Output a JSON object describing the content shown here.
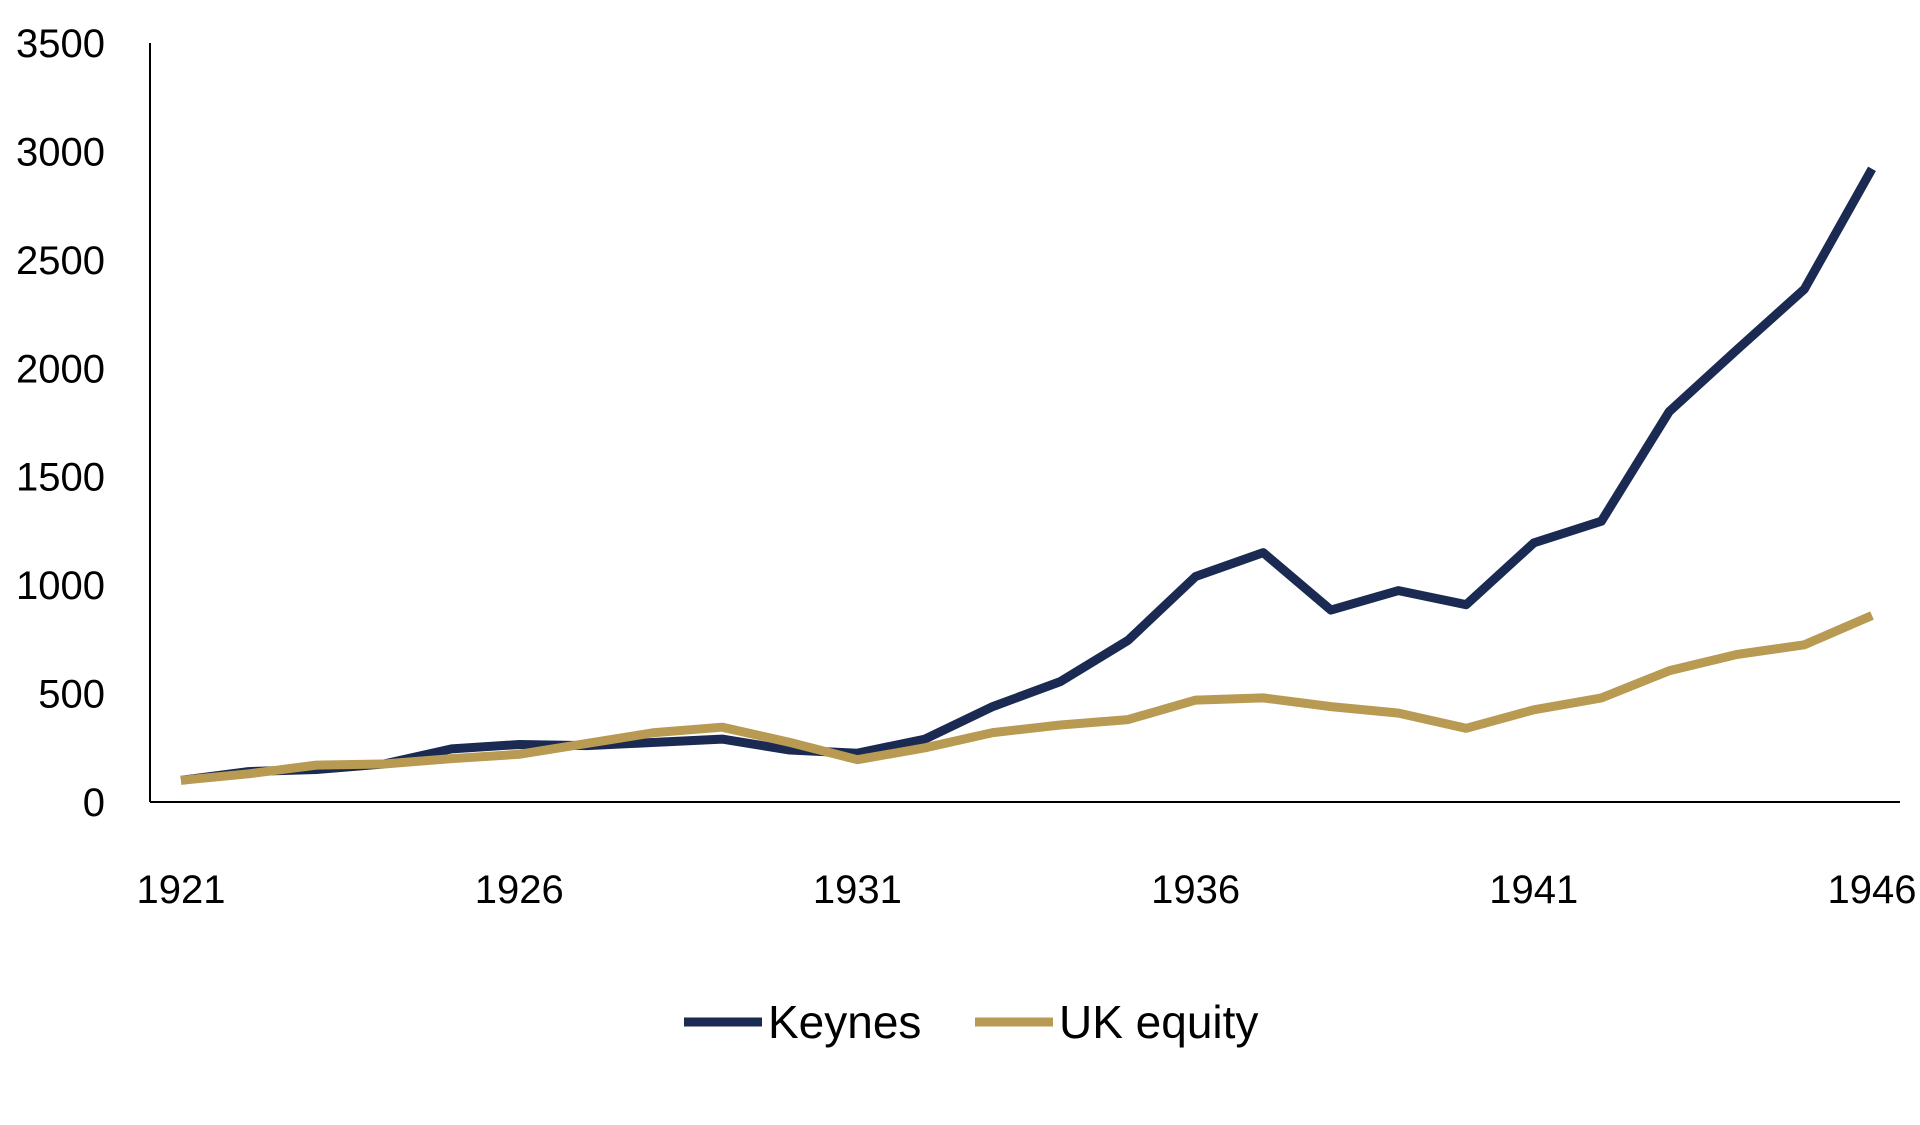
{
  "chart_data": {
    "type": "line",
    "title": "",
    "xlabel": "",
    "ylabel": "",
    "x": [
      1921,
      1922,
      1923,
      1924,
      1925,
      1926,
      1927,
      1928,
      1929,
      1930,
      1931,
      1932,
      1933,
      1934,
      1935,
      1936,
      1937,
      1938,
      1939,
      1940,
      1941,
      1942,
      1943,
      1944,
      1945,
      1946
    ],
    "x_ticks": [
      "1921",
      "1926",
      "1931",
      "1936",
      "1941",
      "1946"
    ],
    "y_ticks": [
      "0",
      "500",
      "1000",
      "1500",
      "2000",
      "2500",
      "3000",
      "3500"
    ],
    "ylim": [
      0,
      3500
    ],
    "grid": false,
    "legend_position": "bottom",
    "series": [
      {
        "name": "Keynes",
        "color": "#1b2a52",
        "values": [
          100,
          140,
          150,
          175,
          245,
          265,
          260,
          275,
          290,
          240,
          225,
          290,
          440,
          555,
          745,
          1040,
          1150,
          885,
          975,
          910,
          1195,
          1295,
          1800,
          2085,
          2365,
          2920
        ]
      },
      {
        "name": "UK equity",
        "color": "#b89a52",
        "values": [
          100,
          130,
          170,
          175,
          200,
          220,
          270,
          320,
          345,
          275,
          195,
          250,
          320,
          355,
          380,
          470,
          480,
          440,
          410,
          340,
          425,
          480,
          605,
          680,
          725,
          860
        ]
      }
    ]
  }
}
